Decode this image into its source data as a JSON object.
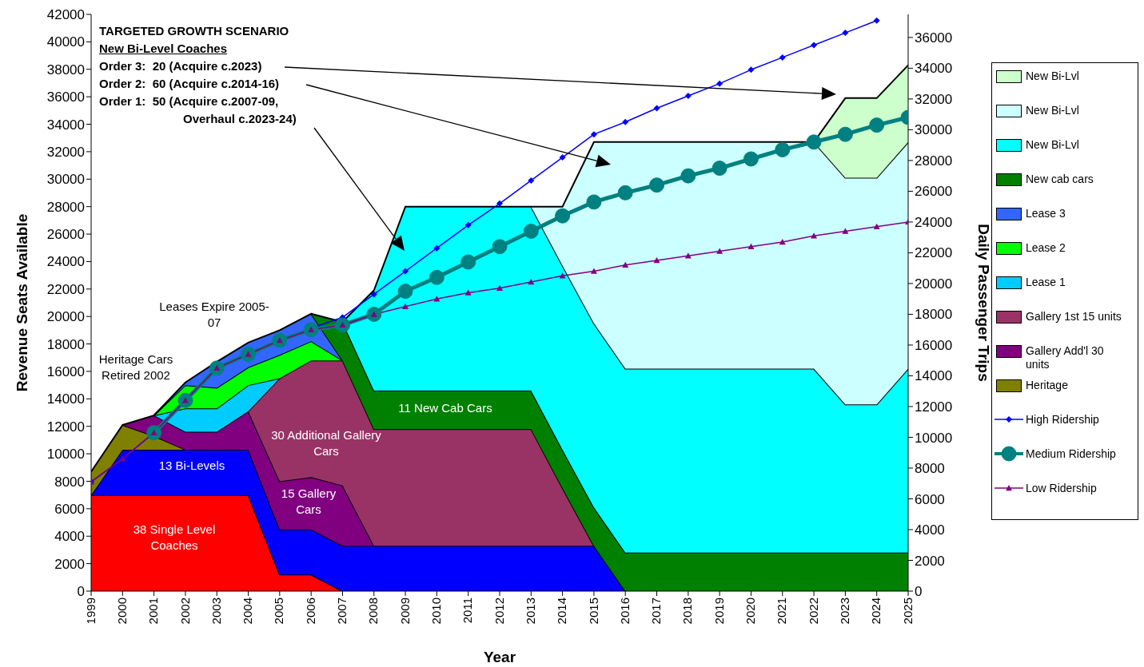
{
  "chart_data": {
    "type": "area",
    "stacked": true,
    "xlabel": "Year",
    "ylabel": "Revenue Seats Available",
    "y2label": "Daily Passenger Trips",
    "x": [
      1999,
      2000,
      2001,
      2002,
      2003,
      2004,
      2005,
      2006,
      2007,
      2008,
      2009,
      2010,
      2011,
      2012,
      2013,
      2014,
      2015,
      2016,
      2017,
      2018,
      2019,
      2020,
      2021,
      2022,
      2023,
      2024,
      2025
    ],
    "xlim": [
      1999,
      2025
    ],
    "xticks": [
      1999,
      2000,
      2001,
      2002,
      2003,
      2004,
      2005,
      2006,
      2007,
      2008,
      2009,
      2010,
      2011,
      2012,
      2013,
      2014,
      2015,
      2016,
      2017,
      2018,
      2019,
      2020,
      2021,
      2022,
      2023,
      2024,
      2025
    ],
    "ylim": [
      0,
      42000
    ],
    "yticks": [
      0,
      2000,
      4000,
      6000,
      8000,
      10000,
      12000,
      14000,
      16000,
      18000,
      20000,
      22000,
      24000,
      26000,
      28000,
      30000,
      32000,
      34000,
      36000,
      38000,
      40000,
      42000
    ],
    "y2lim": [
      0,
      37500
    ],
    "y2ticks": [
      0,
      2000,
      4000,
      6000,
      8000,
      10000,
      12000,
      14000,
      16000,
      18000,
      20000,
      22000,
      24000,
      26000,
      28000,
      30000,
      32000,
      34000,
      36000
    ],
    "legend": "right",
    "series": [
      {
        "color": "#ff0000",
        "values": [
          7000,
          7000,
          7000,
          7000,
          7000,
          7000,
          1200,
          1200,
          0,
          null,
          null,
          null,
          null,
          null,
          null,
          null,
          null,
          null,
          null,
          null,
          null,
          null,
          null,
          null,
          null,
          null,
          null
        ]
      },
      {
        "color": "#0000ff",
        "values": [
          0,
          3300,
          3300,
          3300,
          3300,
          3300,
          3300,
          3300,
          3300,
          3300,
          3300,
          3300,
          3300,
          3300,
          3300,
          3300,
          3300,
          0,
          null,
          null,
          null,
          null,
          null,
          null,
          null,
          null,
          null
        ]
      },
      {
        "name": "Heritage",
        "color": "#808000",
        "values": [
          1700,
          1800,
          1000,
          0,
          null,
          null,
          null,
          null,
          null,
          null,
          null,
          null,
          null,
          null,
          null,
          null,
          null,
          null,
          null,
          null,
          null,
          null,
          null,
          null,
          null,
          null,
          null
        ]
      },
      {
        "name": "Gallery Add'l 30 units",
        "color": "#800080",
        "values": [
          null,
          0,
          1500,
          1300,
          1300,
          2800,
          3500,
          3800,
          4400,
          0,
          null,
          null,
          null,
          null,
          null,
          null,
          null,
          null,
          null,
          null,
          null,
          null,
          null,
          null,
          null,
          null,
          null
        ]
      },
      {
        "name": "Gallery 1st 15 units",
        "color": "#993366",
        "values": [
          null,
          null,
          null,
          null,
          null,
          0,
          7500,
          8500,
          9100,
          8500,
          8500,
          8500,
          8500,
          8500,
          8500,
          4200,
          0,
          null,
          null,
          null,
          null,
          null,
          null,
          null,
          null,
          null,
          null
        ]
      },
      {
        "name": "Lease 1",
        "color": "#00ccff",
        "values": [
          null,
          null,
          0,
          1700,
          1700,
          1900,
          0,
          null,
          null,
          null,
          null,
          null,
          null,
          null,
          null,
          null,
          null,
          null,
          null,
          null,
          null,
          null,
          null,
          null,
          null,
          null,
          null
        ]
      },
      {
        "name": "Lease 2",
        "color": "#00ff00",
        "values": [
          null,
          null,
          0,
          1700,
          1500,
          1300,
          1700,
          1400,
          0,
          null,
          null,
          null,
          null,
          null,
          null,
          null,
          null,
          null,
          null,
          null,
          null,
          null,
          null,
          null,
          null,
          null,
          null
        ]
      },
      {
        "name": "Lease 3",
        "color": "#3366ff",
        "values": [
          null,
          null,
          0,
          200,
          1900,
          1800,
          1800,
          2000,
          0,
          null,
          null,
          null,
          null,
          null,
          null,
          null,
          null,
          null,
          null,
          null,
          null,
          null,
          null,
          null,
          null,
          null,
          null
        ]
      },
      {
        "name": "New cab cars",
        "color": "#008000",
        "values": [
          null,
          null,
          null,
          null,
          null,
          null,
          null,
          0,
          2800,
          2800,
          2800,
          2800,
          2800,
          2800,
          2800,
          2800,
          2800,
          2800,
          2800,
          2800,
          2800,
          2800,
          2800,
          2800,
          2800,
          2800,
          2800
        ]
      },
      {
        "name": "New Bi-Lvl",
        "color": "#00ffff",
        "values": [
          null,
          null,
          null,
          null,
          null,
          null,
          null,
          null,
          0,
          7300,
          13400,
          13400,
          13400,
          13400,
          13400,
          13400,
          13400,
          13400,
          13400,
          13400,
          13400,
          13400,
          13400,
          13400,
          10800,
          10800,
          13400
        ]
      },
      {
        "name": "New Bi-Lvl",
        "color": "#ccffff",
        "values": [
          null,
          null,
          null,
          null,
          null,
          null,
          null,
          null,
          null,
          null,
          null,
          null,
          null,
          null,
          0,
          4300,
          13200,
          16500,
          16500,
          16500,
          16500,
          16500,
          16500,
          16500,
          16500,
          16500,
          16500
        ]
      },
      {
        "name": "New Bi-Lvl",
        "color": "#ccffcc",
        "values": [
          null,
          null,
          null,
          null,
          null,
          null,
          null,
          null,
          null,
          null,
          null,
          null,
          null,
          null,
          null,
          null,
          null,
          null,
          null,
          null,
          null,
          null,
          null,
          0,
          5800,
          5800,
          5600
        ]
      },
      {
        "type": "line",
        "axis": "y2",
        "name": "High Ridership",
        "color": "#0000ff",
        "marker": "diamond",
        "values": [
          7100,
          8600,
          10300,
          12400,
          14500,
          15400,
          16300,
          17100,
          17800,
          19300,
          20800,
          22300,
          23800,
          25200,
          26700,
          28200,
          29700,
          30500,
          31400,
          32200,
          33000,
          33900,
          34700,
          35500,
          36300,
          37100,
          null
        ]
      },
      {
        "type": "line",
        "axis": "y2",
        "name": "Medium Ridership",
        "color": "#008080",
        "marker": "circle",
        "values": [
          null,
          null,
          10300,
          12400,
          14500,
          15400,
          16300,
          17000,
          17300,
          18000,
          19500,
          20400,
          21400,
          22400,
          23400,
          24400,
          25300,
          25900,
          26400,
          27000,
          27500,
          28100,
          28700,
          29200,
          29700,
          30300,
          30800
        ]
      },
      {
        "type": "line",
        "axis": "y2",
        "name": "Low Ridership",
        "color": "#800080",
        "marker": "triangle",
        "values": [
          7100,
          8600,
          10300,
          12400,
          14500,
          15400,
          16300,
          17000,
          17300,
          18000,
          18500,
          19000,
          19400,
          19700,
          20100,
          20500,
          20800,
          21200,
          21500,
          21800,
          22100,
          22400,
          22700,
          23100,
          23400,
          23700,
          24000
        ]
      }
    ],
    "annotations": [
      "TARGETED GROWTH SCENARIO",
      "New Bi-Level Coaches",
      "Order 3:  20 (Acquire c.2023)",
      "Order 2:  60 (Acquire c.2014-16)",
      "Order 1:  50 (Acquire c.2007-09,",
      "Overhaul c.2023-24)",
      "38 Single Level Coaches",
      "13 Bi-Levels",
      "15 Gallery Cars",
      "30  Additional Gallery Cars",
      "11  New Cab Cars",
      "Heritage Cars Retired 2002",
      "Leases Expire 2005-07"
    ]
  }
}
